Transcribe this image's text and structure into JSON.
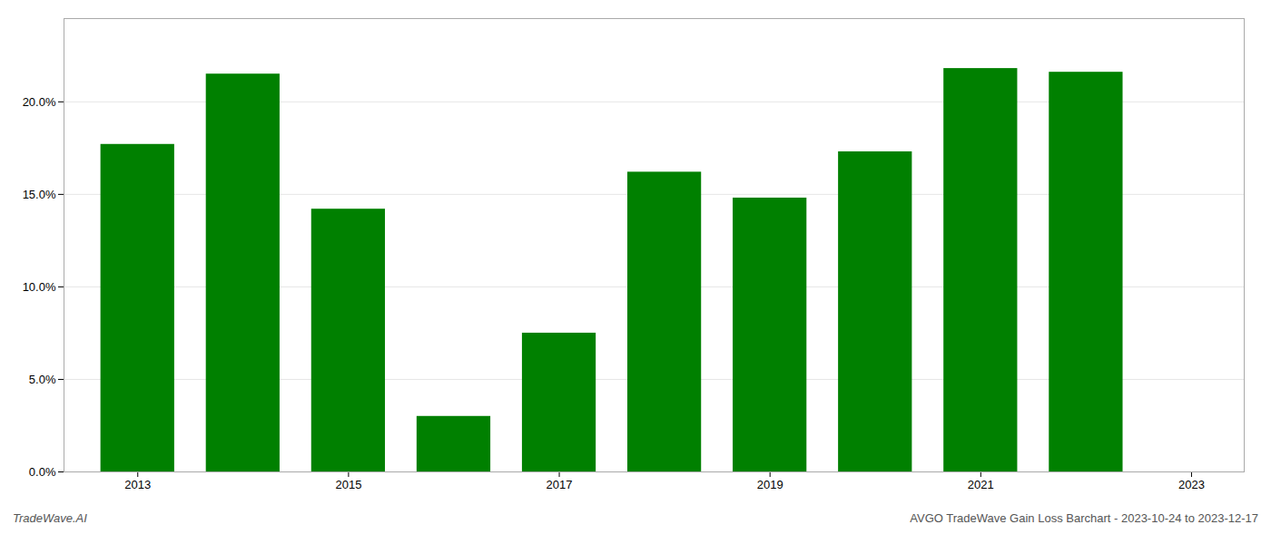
{
  "chart_data": {
    "type": "bar",
    "x": [
      2013,
      2014,
      2015,
      2016,
      2017,
      2018,
      2019,
      2020,
      2021,
      2022
    ],
    "values": [
      0.177,
      0.215,
      0.142,
      0.03,
      0.075,
      0.162,
      0.148,
      0.173,
      0.218,
      0.216
    ],
    "color": "#008000",
    "xlim": [
      2012.3,
      2023.5
    ],
    "xticks": [
      2013,
      2015,
      2017,
      2019,
      2021,
      2023
    ],
    "ylim": [
      0,
      0.245
    ],
    "yticks": [
      {
        "value": 0.0,
        "label": "0.0%"
      },
      {
        "value": 0.05,
        "label": "5.0%"
      },
      {
        "value": 0.1,
        "label": "10.0%"
      },
      {
        "value": 0.15,
        "label": "15.0%"
      },
      {
        "value": 0.2,
        "label": "20.0%"
      }
    ],
    "grid": true,
    "annotations": [
      "TradeWave.AI",
      "AVGO TradeWave Gain Loss Barchart - 2023-10-24 to 2023-12-17"
    ]
  }
}
